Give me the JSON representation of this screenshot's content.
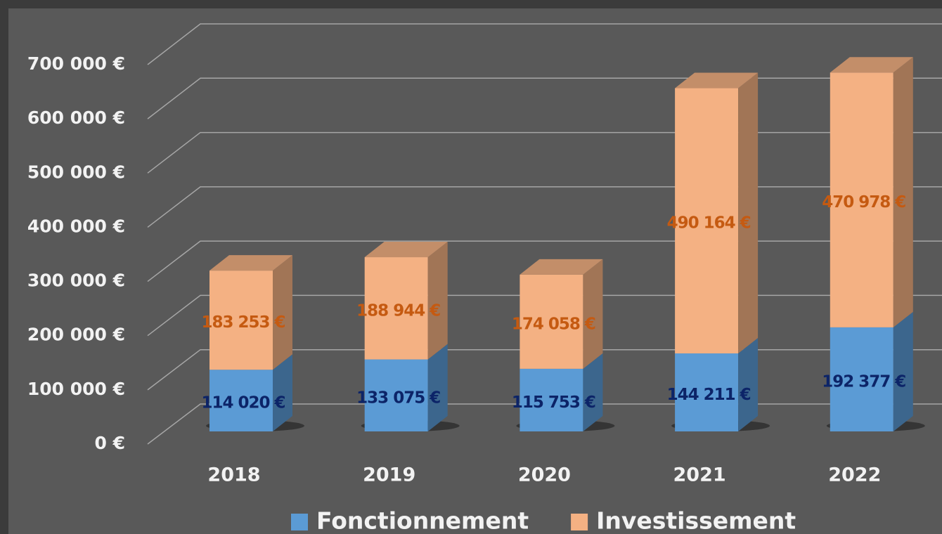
{
  "chart_data": {
    "type": "bar3d_stacked",
    "categories": [
      "2018",
      "2019",
      "2020",
      "2021",
      "2022"
    ],
    "series": [
      {
        "name": "Fonctionnement",
        "color": "#5b9bd5",
        "label_color": "#0c2468",
        "values": [
          114020,
          133075,
          115753,
          144211,
          192377
        ],
        "value_labels": [
          "114 020 €",
          "133 075 €",
          "115 753 €",
          "144 211 €",
          "192 377 €"
        ]
      },
      {
        "name": "Investissement",
        "color": "#f4b183",
        "label_color": "#c55a11",
        "values": [
          183253,
          188944,
          174058,
          490164,
          470978
        ],
        "value_labels": [
          "183 253 €",
          "188 944 €",
          "174 058 €",
          "490 164 €",
          "470 978 €"
        ]
      }
    ],
    "ylim": [
      0,
      700000
    ],
    "yticks": [
      {
        "value": 0,
        "label": "0 €"
      },
      {
        "value": 100000,
        "label": "100 000 €"
      },
      {
        "value": 200000,
        "label": "200 000 €"
      },
      {
        "value": 300000,
        "label": "300 000 €"
      },
      {
        "value": 400000,
        "label": "400 000 €"
      },
      {
        "value": 500000,
        "label": "500 000 €"
      },
      {
        "value": 600000,
        "label": "600 000 €"
      },
      {
        "value": 700000,
        "label": "700 000 €"
      }
    ],
    "grid": true,
    "legend": "bottom"
  }
}
